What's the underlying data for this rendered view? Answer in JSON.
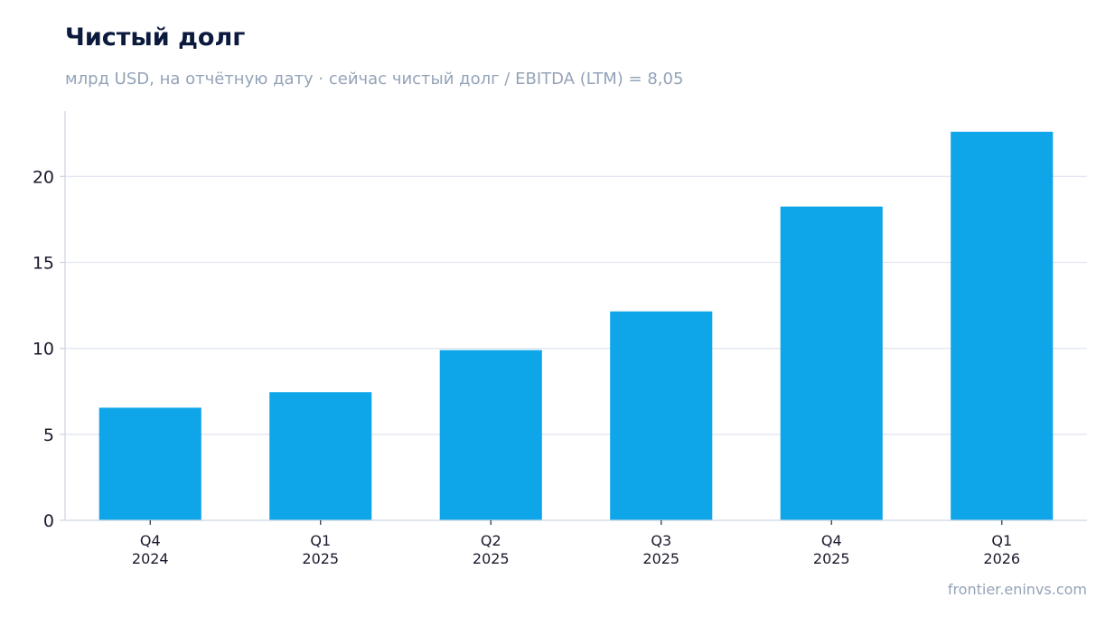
{
  "header": {
    "title": "Чистый долг",
    "subtitle": "млрд USD, на отчётную дату · сейчас чистый долг / EBITDA (LTM) = 8,05"
  },
  "footer": {
    "source": "frontier.eninvs.com"
  },
  "colors": {
    "bar": "#0ea5e9",
    "grid": "#e2e6ef",
    "axis": "#cfd6e2",
    "title": "#0b1a3d",
    "muted": "#94a3b8"
  },
  "chart_data": {
    "type": "bar",
    "title": "Чистый долг",
    "subtitle": "млрд USD, на отчётную дату · сейчас чистый долг / EBITDA (LTM) = 8,05",
    "xlabel": "",
    "ylabel": "",
    "categories": [
      [
        "Q4",
        "2024"
      ],
      [
        "Q1",
        "2025"
      ],
      [
        "Q2",
        "2025"
      ],
      [
        "Q3",
        "2025"
      ],
      [
        "Q4",
        "2025"
      ],
      [
        "Q1",
        "2026"
      ]
    ],
    "values": [
      6.55,
      7.45,
      9.9,
      12.15,
      18.25,
      22.6
    ],
    "ylim": [
      0,
      23.8
    ],
    "yticks": [
      0,
      5,
      10,
      15,
      20
    ],
    "grid": true,
    "legend": "none"
  }
}
